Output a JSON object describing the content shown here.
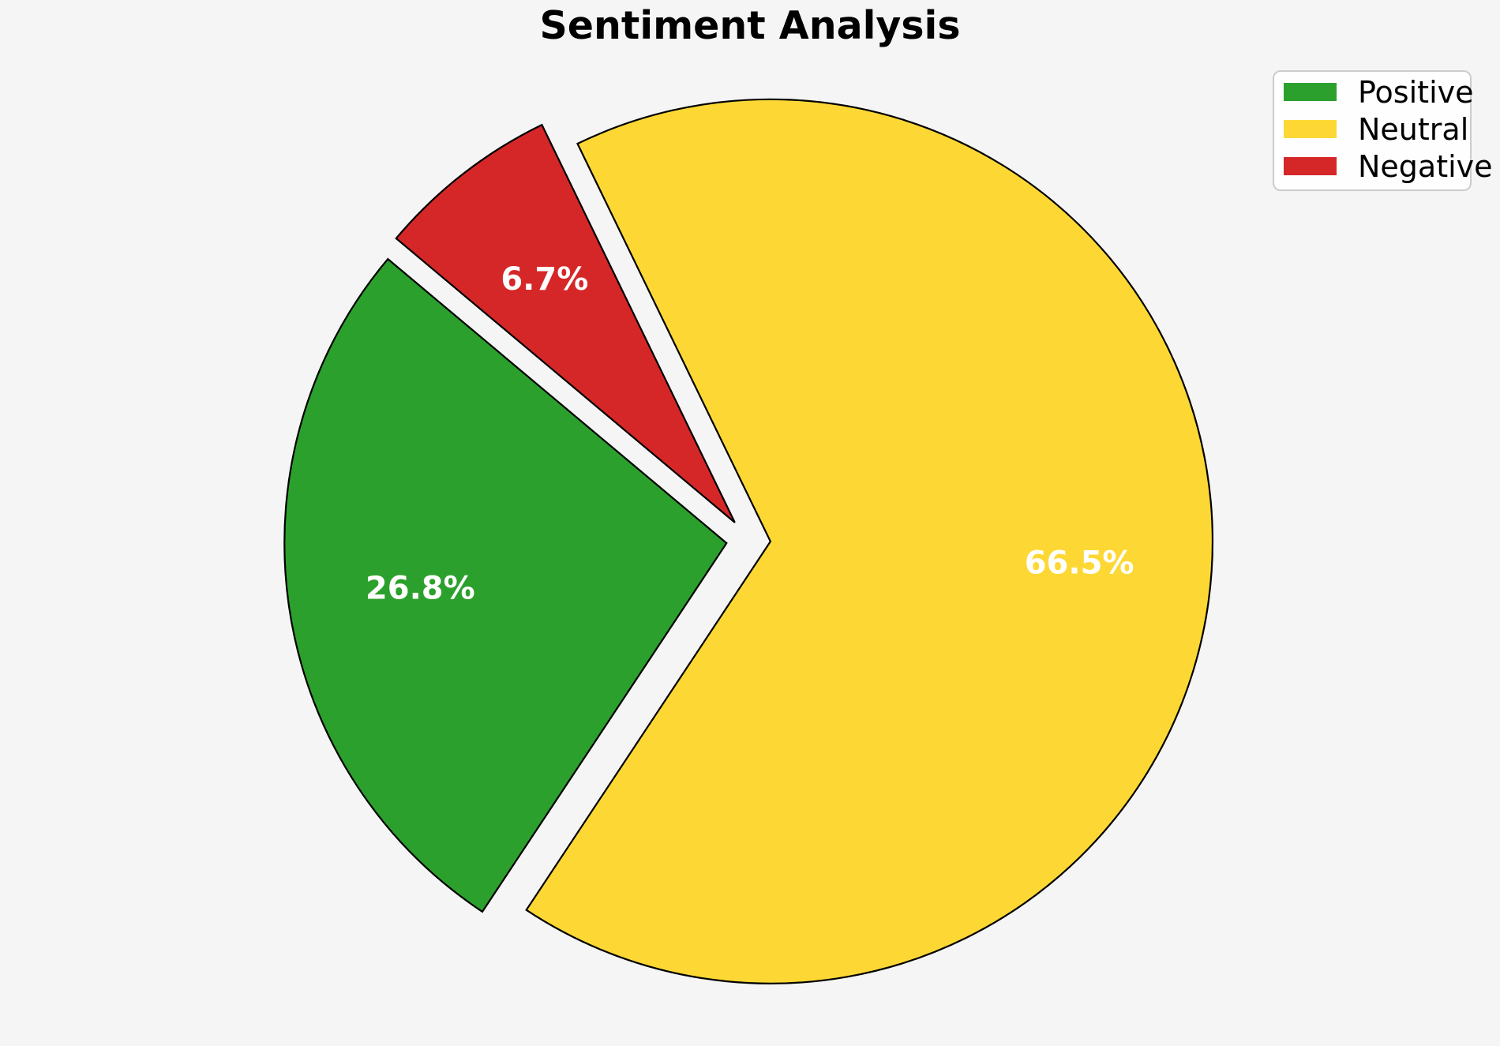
{
  "chart_data": {
    "type": "pie",
    "title": "Sentiment Analysis",
    "categories": [
      "Positive",
      "Neutral",
      "Negative"
    ],
    "values": [
      26.8,
      66.5,
      6.7
    ],
    "labels": [
      "26.8%",
      "66.5%",
      "6.7%"
    ],
    "colors": [
      "#2ca02c",
      "#fdd835",
      "#d62728"
    ],
    "background_color": "#f5f5f5",
    "edge_color": "#000000",
    "label_color": "#ffffff",
    "start_angle": 140,
    "direction": "counterclockwise",
    "explode": 0.05,
    "label_distance": 0.7,
    "legend_position": "upper right"
  }
}
